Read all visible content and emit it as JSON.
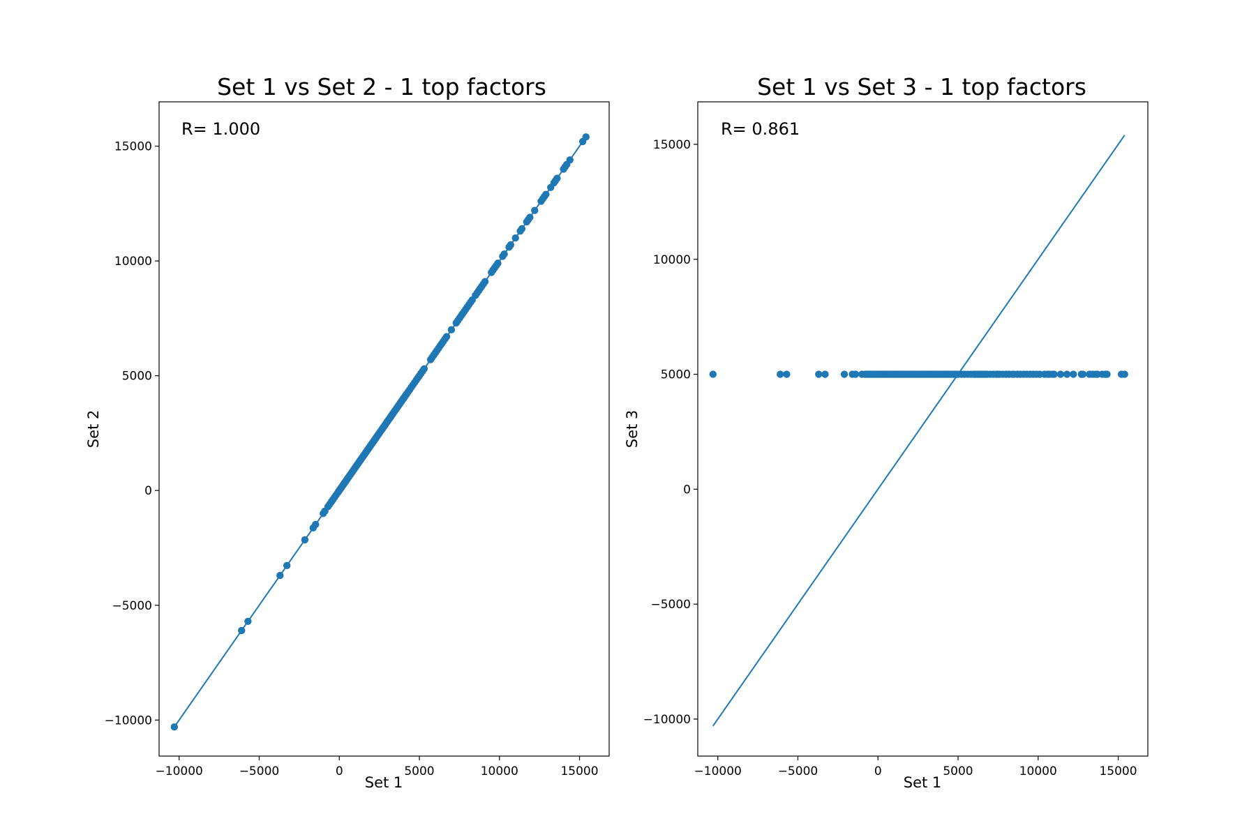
{
  "chart_data": [
    {
      "type": "scatter",
      "title": "Set 1 vs Set 2 - 1 top factors",
      "xlabel": "Set 1",
      "ylabel": "Set 2",
      "annotation": "R= 1.000",
      "xlim": [
        -11250,
        16850
      ],
      "ylim": [
        -11570,
        16930
      ],
      "xticks": [
        -10000,
        -5000,
        0,
        5000,
        10000,
        15000
      ],
      "yticks": [
        -10000,
        -5000,
        0,
        5000,
        10000,
        15000
      ],
      "xtick_labels": [
        "−10000",
        "−5000",
        "0",
        "5000",
        "10000",
        "15000"
      ],
      "ytick_labels": [
        "−10000",
        "−5000",
        "0",
        "5000",
        "10000",
        "15000"
      ],
      "color": "#1f77b4",
      "grid": false,
      "fit_line": {
        "x": [
          -10300,
          15400
        ],
        "y": [
          -10300,
          15400
        ]
      },
      "series": [
        {
          "mode": "diagonal",
          "points_x": [
            -10300,
            -6100,
            -5700,
            -3700,
            -3270,
            -2150,
            -1630,
            -1480,
            -1000,
            -900,
            -700,
            -600,
            -500,
            -450,
            -400,
            -300,
            -200,
            -100,
            -50,
            0,
            50,
            100,
            150,
            200,
            250,
            300,
            350,
            400,
            450,
            500,
            550,
            600,
            650,
            700,
            750,
            800,
            850,
            900,
            950,
            1000,
            1050,
            1100,
            1150,
            1200,
            1250,
            1300,
            1350,
            1400,
            1450,
            1500,
            1550,
            1600,
            1650,
            1700,
            1750,
            1800,
            1850,
            1900,
            1950,
            2000,
            2050,
            2100,
            2150,
            2200,
            2250,
            2300,
            2350,
            2400,
            2450,
            2500,
            2550,
            2600,
            2650,
            2700,
            2750,
            2800,
            2850,
            2900,
            2950,
            3000,
            3050,
            3100,
            3150,
            3200,
            3250,
            3300,
            3350,
            3400,
            3450,
            3500,
            3550,
            3600,
            3650,
            3700,
            3750,
            3800,
            3850,
            3900,
            3950,
            4000,
            4050,
            4100,
            4150,
            4200,
            4300,
            4400,
            4500,
            4600,
            4700,
            4800,
            4900,
            5000,
            5100,
            5200,
            5300,
            5700,
            5800,
            5900,
            6000,
            6100,
            6200,
            6300,
            6400,
            6500,
            6600,
            6700,
            7000,
            7300,
            7400,
            7500,
            7600,
            7700,
            7800,
            7900,
            8000,
            8100,
            8200,
            8300,
            8500,
            8600,
            8700,
            8800,
            8900,
            9000,
            9100,
            9500,
            9600,
            9700,
            9800,
            9900,
            10200,
            10300,
            10600,
            10700,
            11000,
            11300,
            11400,
            11700,
            11800,
            11900,
            12200,
            12600,
            12700,
            12800,
            12900,
            13200,
            13400,
            13500,
            13600,
            14000,
            14100,
            14200,
            14400,
            15200,
            15400
          ]
        },
        {
          "mode": "flat",
          "y": 5000,
          "points_x": [
            -10300,
            -6100,
            -5700,
            -3700,
            -3300,
            -2100,
            -1600,
            -1400,
            -1000,
            -800,
            -700,
            -600,
            -500,
            -400,
            -300,
            -200,
            -100,
            0,
            100,
            200,
            300,
            400,
            500,
            600,
            700,
            800,
            900,
            1000,
            1100,
            1200,
            1300,
            1400,
            1500,
            1600,
            1700,
            1800,
            1900,
            2000,
            2100,
            2200,
            2300,
            2400,
            2500,
            2600,
            2700,
            2800,
            2900,
            3000,
            3100,
            3200,
            3300,
            3400,
            3500,
            3600,
            3700,
            3800,
            3900,
            4000,
            4100,
            4200,
            4300,
            4400,
            4500,
            4600,
            4700,
            4800,
            4900,
            5000,
            5200,
            5400,
            5600,
            5800,
            6000,
            6100,
            6200,
            6300,
            6400,
            6500,
            6600,
            6700,
            6800,
            7000,
            7200,
            7400,
            7500,
            7600,
            7800,
            8000,
            8200,
            8400,
            8500,
            8700,
            8900,
            9100,
            9300,
            9500,
            9700,
            9900,
            10100,
            10400,
            10600,
            10700,
            10900,
            11000,
            11400,
            11800,
            12200,
            12700,
            12800,
            13200,
            13400,
            13600,
            13700,
            14000,
            14200,
            14300,
            15200,
            15400
          ]
        }
      ]
    },
    {
      "type": "scatter",
      "title": "Set 1 vs Set 3 - 1 top factors",
      "xlabel": "Set 1",
      "ylabel": "Set 3",
      "annotation": "R= 0.861",
      "xlim": [
        -11250,
        16850
      ],
      "ylim": [
        -11610,
        16850
      ],
      "xticks": [
        -10000,
        -5000,
        0,
        5000,
        10000,
        15000
      ],
      "yticks": [
        -10000,
        -5000,
        0,
        5000,
        10000,
        15000
      ],
      "xtick_labels": [
        "−10000",
        "−5000",
        "0",
        "5000",
        "10000",
        "15000"
      ],
      "ytick_labels": [
        "−10000",
        "−5000",
        "0",
        "5000",
        "10000",
        "15000"
      ],
      "color": "#1f77b4",
      "grid": false,
      "fit_line": {
        "x": [
          -10300,
          15400
        ],
        "y": [
          -10300,
          15400
        ]
      }
    }
  ]
}
